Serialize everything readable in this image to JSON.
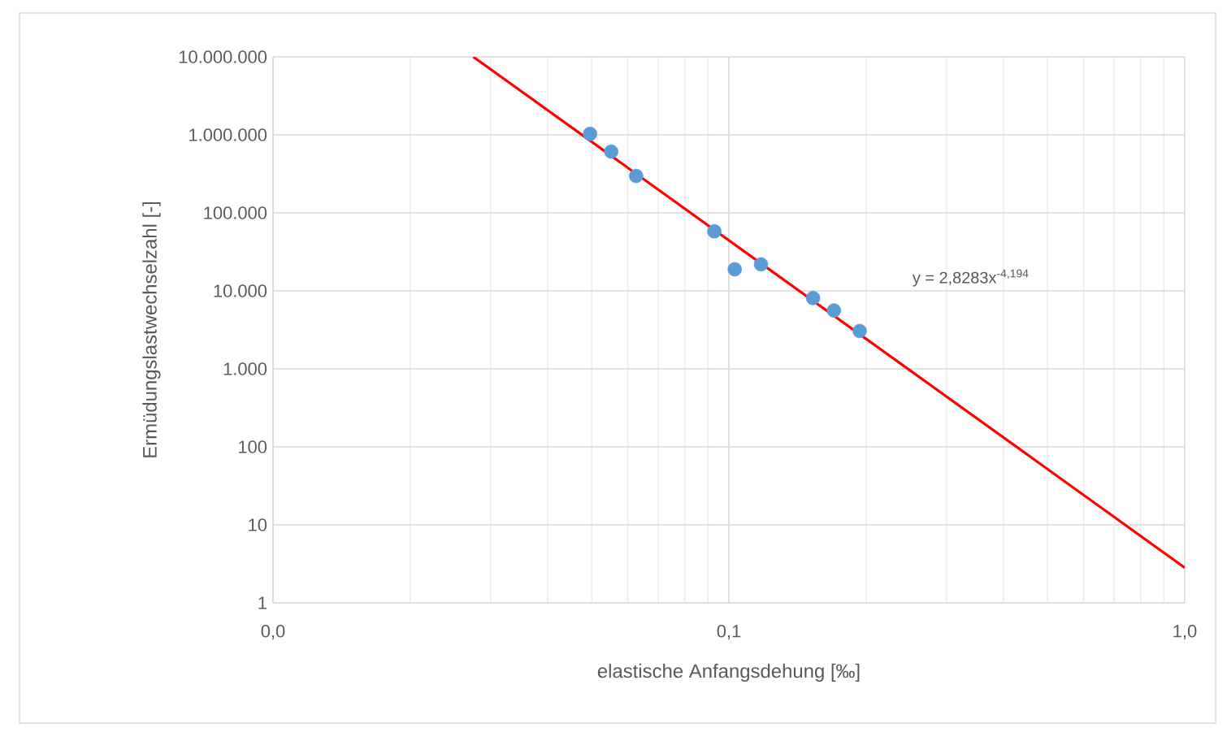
{
  "chart_data": {
    "type": "scatter",
    "xlabel": "elastische Anfangsdehung [‰]",
    "ylabel": "Ermüdungslastwechselzahl [-]",
    "log": "xy",
    "grid": true,
    "xlim": [
      0.01,
      1
    ],
    "ylim": [
      1,
      10000000
    ],
    "xticks": [
      {
        "value": 0.01,
        "label": "0,0"
      },
      {
        "value": 0.1,
        "label": "0,1"
      },
      {
        "value": 1,
        "label": "1,0"
      }
    ],
    "yticks": [
      {
        "value": 1,
        "label": "1"
      },
      {
        "value": 10,
        "label": "10"
      },
      {
        "value": 100,
        "label": "100"
      },
      {
        "value": 1000,
        "label": "1.000"
      },
      {
        "value": 10000,
        "label": "10.000"
      },
      {
        "value": 100000,
        "label": "100.000"
      },
      {
        "value": 1000000,
        "label": "1.000.000"
      },
      {
        "value": 10000000,
        "label": "10.000.000"
      }
    ],
    "series": [
      {
        "color": "#5b9bd5",
        "marker": "circle",
        "x": [
          0.0496,
          0.0552,
          0.0626,
          0.0929,
          0.103,
          0.1176,
          0.153,
          0.17,
          0.1936
        ],
        "values": [
          1030000,
          610000,
          297000,
          58000,
          18900,
          21900,
          8100,
          5600,
          3060
        ]
      },
      {
        "type": "line",
        "color": "#ff0000",
        "marker": "none",
        "line_style": "solid",
        "x": [
          0.0275,
          1
        ],
        "values": [
          10000000,
          2.83
        ]
      }
    ],
    "annotations": [
      "y = 2,8283x$^{-4,194}$"
    ]
  }
}
